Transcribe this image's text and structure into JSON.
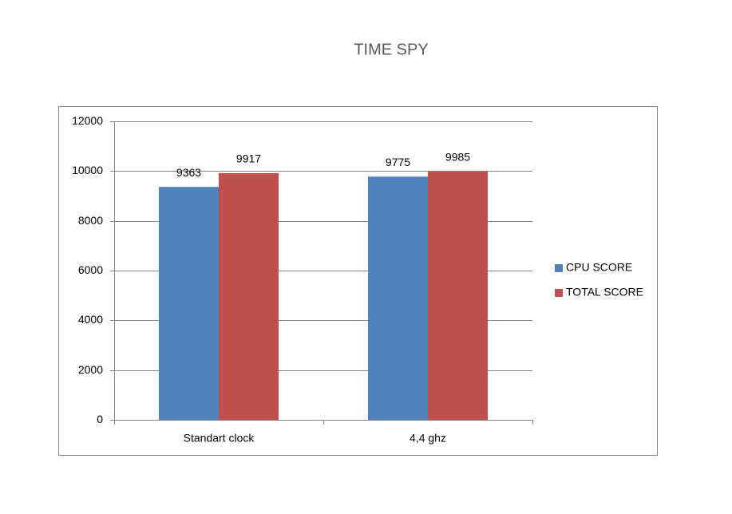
{
  "chart_data": {
    "type": "bar",
    "title": "TIME SPY",
    "categories": [
      "Standart clock",
      "4,4 ghz"
    ],
    "series": [
      {
        "name": "CPU SCORE",
        "color": "#4f81bd",
        "values": [
          9363,
          9775
        ]
      },
      {
        "name": "TOTAL SCORE",
        "color": "#c0504d",
        "values": [
          9917,
          9985
        ]
      }
    ],
    "ylim": [
      0,
      12000
    ],
    "yticks": [
      0,
      2000,
      4000,
      6000,
      8000,
      10000,
      12000
    ],
    "grid": true,
    "legend": "right"
  }
}
